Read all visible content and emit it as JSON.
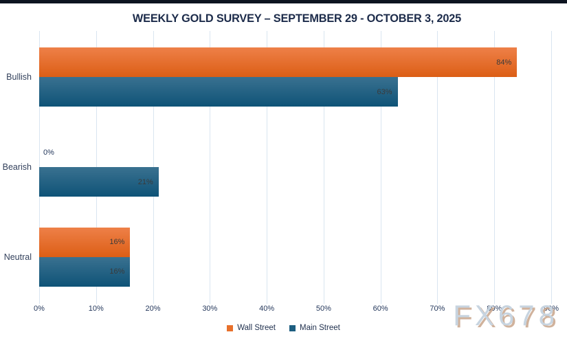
{
  "page": {
    "background_color": "#ffffff",
    "top_border_color": "#0d1420"
  },
  "title": "WEEKLY GOLD SURVEY – SEPTEMBER 29 - OCTOBER 3, 2025",
  "watermark": "FX678",
  "colors": {
    "wall_street_accent": "#e8702b",
    "main_street_accent": "#1d5e80",
    "gridline": "#d9e5f0",
    "title_text": "#1c2b4a",
    "tick_text": "#25385c",
    "bar_value_text": "#3a3a3a"
  },
  "chart_data": {
    "type": "bar",
    "orientation": "horizontal",
    "title": "WEEKLY GOLD SURVEY – SEPTEMBER 29 - OCTOBER 3, 2025",
    "categories": [
      "Bullish",
      "Bearish",
      "Neutral"
    ],
    "series": [
      {
        "name": "Wall Street",
        "values": [
          84,
          0,
          16
        ],
        "color_top": "#ee8048",
        "color_bottom": "#dc5e15",
        "legend_color": "#e8702b"
      },
      {
        "name": "Main Street",
        "values": [
          63,
          21,
          16
        ],
        "color_top": "#3a7190",
        "color_bottom": "#0e5377",
        "legend_color": "#1d5e80"
      }
    ],
    "value_suffix": "%",
    "xlim": [
      0,
      90
    ],
    "x_ticks": [
      "0%",
      "10%",
      "20%",
      "30%",
      "40%",
      "50%",
      "60%",
      "70%",
      "80%",
      "90%"
    ],
    "grid": true,
    "legend_position": "bottom",
    "data_labels": true
  }
}
